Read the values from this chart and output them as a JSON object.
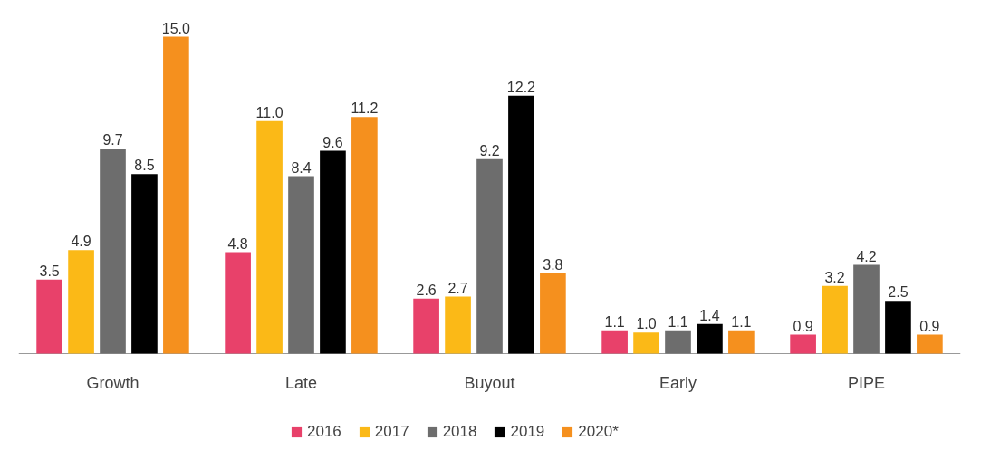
{
  "chart_data": {
    "type": "bar",
    "categories": [
      "Growth",
      "Late",
      "Buyout",
      "Early",
      "PIPE"
    ],
    "series": [
      {
        "name": "2016",
        "color": "#e8416a",
        "values": [
          3.5,
          4.8,
          2.6,
          1.1,
          0.9
        ],
        "value_labels": [
          "3.5",
          "4.8",
          "2.6",
          "1.1",
          "0.9"
        ]
      },
      {
        "name": "2017",
        "color": "#fbb917",
        "values": [
          4.9,
          11.0,
          2.7,
          1.0,
          3.2
        ],
        "value_labels": [
          "4.9",
          "11.0",
          "2.7",
          "1.0",
          "3.2"
        ]
      },
      {
        "name": "2018",
        "color": "#6d6d6d",
        "values": [
          9.7,
          8.4,
          9.2,
          1.1,
          4.2
        ],
        "value_labels": [
          "9.7",
          "8.4",
          "9.2",
          "1.1",
          "4.2"
        ]
      },
      {
        "name": "2019",
        "color": "#000000",
        "values": [
          8.5,
          9.6,
          12.2,
          1.4,
          2.5
        ],
        "value_labels": [
          "8.5",
          "9.6",
          "12.2",
          "1.4",
          "2.5"
        ]
      },
      {
        "name": "2020*",
        "color": "#f5901e",
        "values": [
          15.0,
          11.2,
          3.8,
          1.1,
          0.9
        ],
        "value_labels": [
          "15.0",
          "11.2",
          "3.8",
          "1.1",
          "0.9"
        ]
      }
    ],
    "legend": "bottom"
  }
}
